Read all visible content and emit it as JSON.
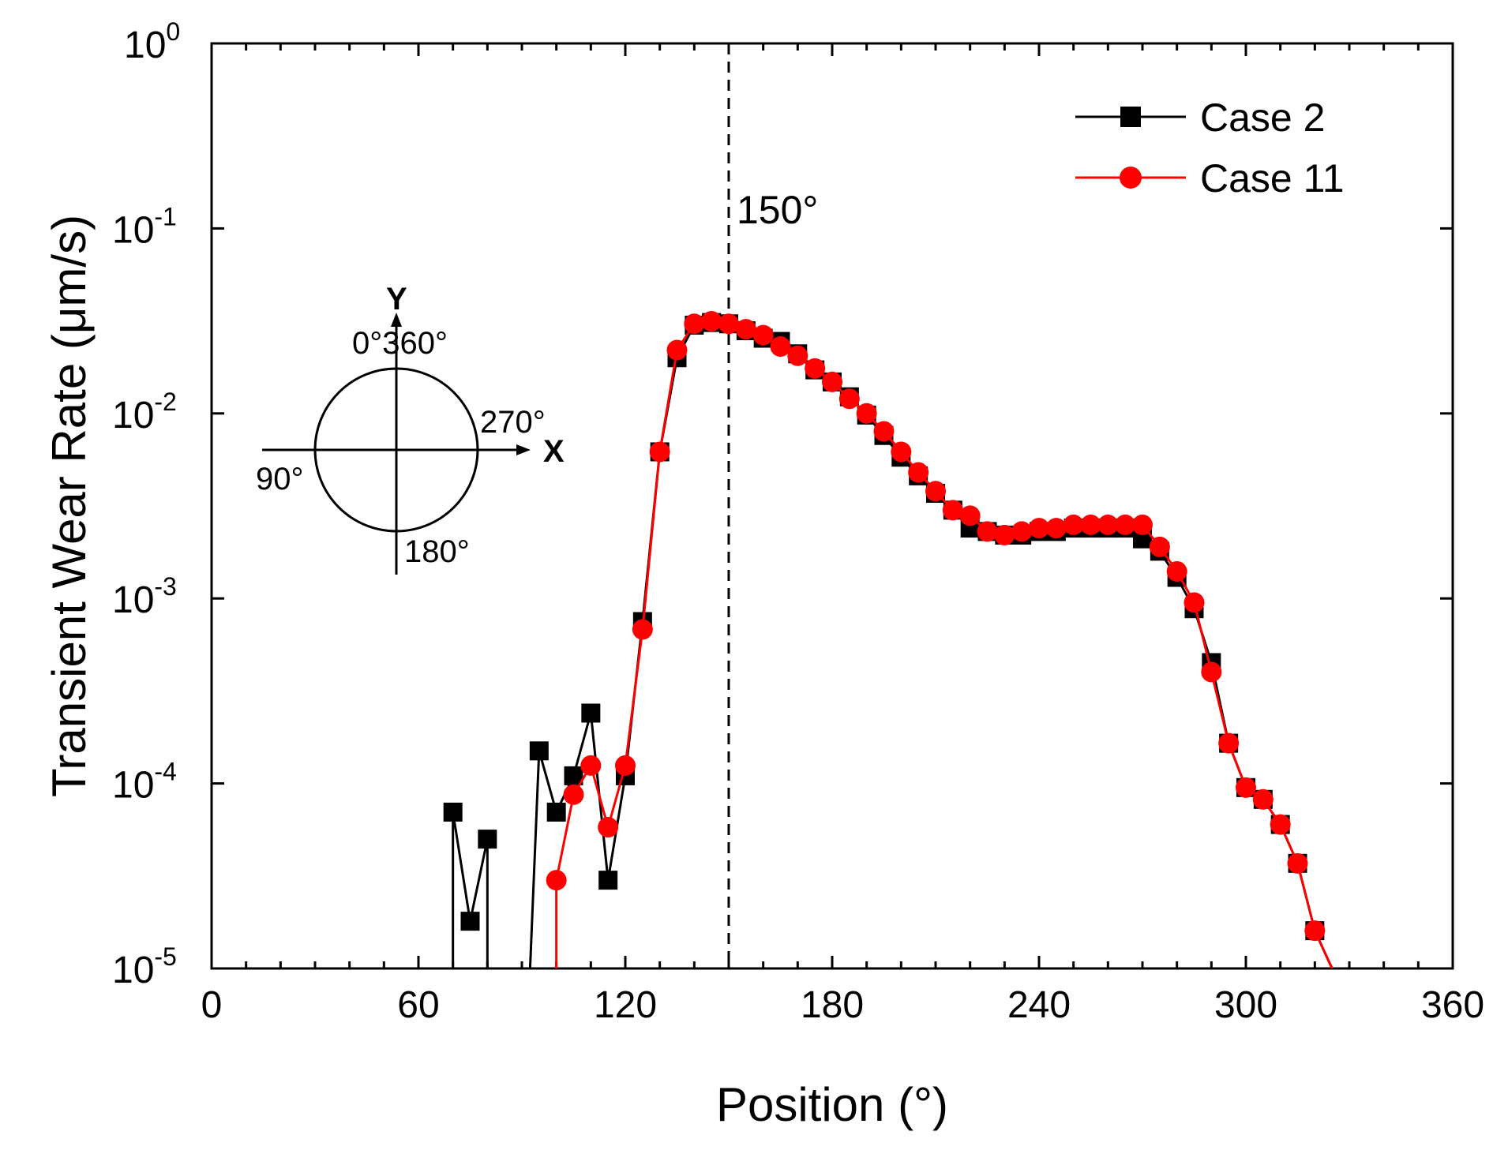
{
  "chart_data": {
    "type": "line",
    "yscale": "log",
    "xlabel": "Position (°)",
    "ylabel": "Transient Wear Rate (μm/s)",
    "xlim": [
      0,
      360
    ],
    "ylim": [
      1e-05,
      1
    ],
    "xticks": [
      "0",
      "60",
      "120",
      "180",
      "240",
      "300",
      "360"
    ],
    "xtick_values": [
      0,
      60,
      120,
      180,
      240,
      300,
      360
    ],
    "yticks": [
      {
        "base": "10",
        "exp": "0",
        "value": 1
      },
      {
        "base": "10",
        "exp": "-1",
        "value": 0.1
      },
      {
        "base": "10",
        "exp": "-2",
        "value": 0.01
      },
      {
        "base": "10",
        "exp": "-3",
        "value": 0.001
      },
      {
        "base": "10",
        "exp": "-4",
        "value": 0.0001
      },
      {
        "base": "10",
        "exp": "-5",
        "value": 1e-05
      }
    ],
    "reference_line": {
      "x": 150,
      "label": "150°",
      "style": "dashed"
    },
    "legend_position": "top-right",
    "series": [
      {
        "name": "Case 2",
        "color": "#000000",
        "marker": "square",
        "x": [
          70,
          75,
          80,
          95,
          100,
          105,
          110,
          115,
          120,
          125,
          130,
          135,
          140,
          145,
          150,
          155,
          160,
          165,
          170,
          175,
          180,
          185,
          190,
          195,
          200,
          205,
          210,
          215,
          220,
          225,
          230,
          235,
          240,
          245,
          250,
          255,
          260,
          265,
          270,
          275,
          280,
          285,
          290,
          295,
          300,
          305,
          310,
          315,
          320,
          325
        ],
        "y": [
          7e-05,
          1.8e-05,
          5e-05,
          0.00015,
          7e-05,
          0.00011,
          0.00024,
          3e-05,
          0.00011,
          0.00075,
          0.0062,
          0.02,
          0.03,
          0.031,
          0.0305,
          0.028,
          0.0255,
          0.0245,
          0.021,
          0.0172,
          0.0148,
          0.0123,
          0.0098,
          0.0076,
          0.0058,
          0.0046,
          0.0037,
          0.003,
          0.0024,
          0.0023,
          0.0022,
          0.0022,
          0.0023,
          0.0023,
          0.0024,
          0.0024,
          0.0024,
          0.0024,
          0.0021,
          0.0018,
          0.0013,
          0.00088,
          0.00045,
          0.000165,
          9.5e-05,
          8.2e-05,
          6e-05,
          3.7e-05,
          1.6e-05,
          1e-05
        ],
        "segments_note": "line drops below axis minimum between 80° and 95°"
      },
      {
        "name": "Case 11",
        "color": "#ff0000",
        "marker": "circle",
        "x": [
          100,
          105,
          110,
          115,
          120,
          125,
          130,
          135,
          140,
          145,
          150,
          155,
          160,
          165,
          170,
          175,
          180,
          185,
          190,
          195,
          200,
          205,
          210,
          215,
          220,
          225,
          230,
          235,
          240,
          245,
          250,
          255,
          260,
          265,
          270,
          275,
          280,
          285,
          290,
          295,
          300,
          305,
          310,
          315,
          320,
          325
        ],
        "y": [
          3e-05,
          8.7e-05,
          0.000125,
          5.8e-05,
          0.000125,
          0.00068,
          0.0062,
          0.022,
          0.0305,
          0.0315,
          0.0305,
          0.0285,
          0.0265,
          0.023,
          0.0205,
          0.0175,
          0.0148,
          0.012,
          0.01,
          0.008,
          0.0062,
          0.0048,
          0.0038,
          0.003,
          0.0028,
          0.0023,
          0.0022,
          0.0023,
          0.0024,
          0.0024,
          0.0025,
          0.0025,
          0.0025,
          0.0025,
          0.0025,
          0.0019,
          0.0014,
          0.00095,
          0.0004,
          0.000165,
          9.5e-05,
          8.2e-05,
          6e-05,
          3.7e-05,
          1.6e-05,
          1e-05
        ]
      }
    ],
    "inset": {
      "y_axis_label": "Y",
      "x_axis_label": "X",
      "labels": {
        "top": "0°360°",
        "right": "270°",
        "left": "90°",
        "bottom": "180°"
      }
    }
  }
}
